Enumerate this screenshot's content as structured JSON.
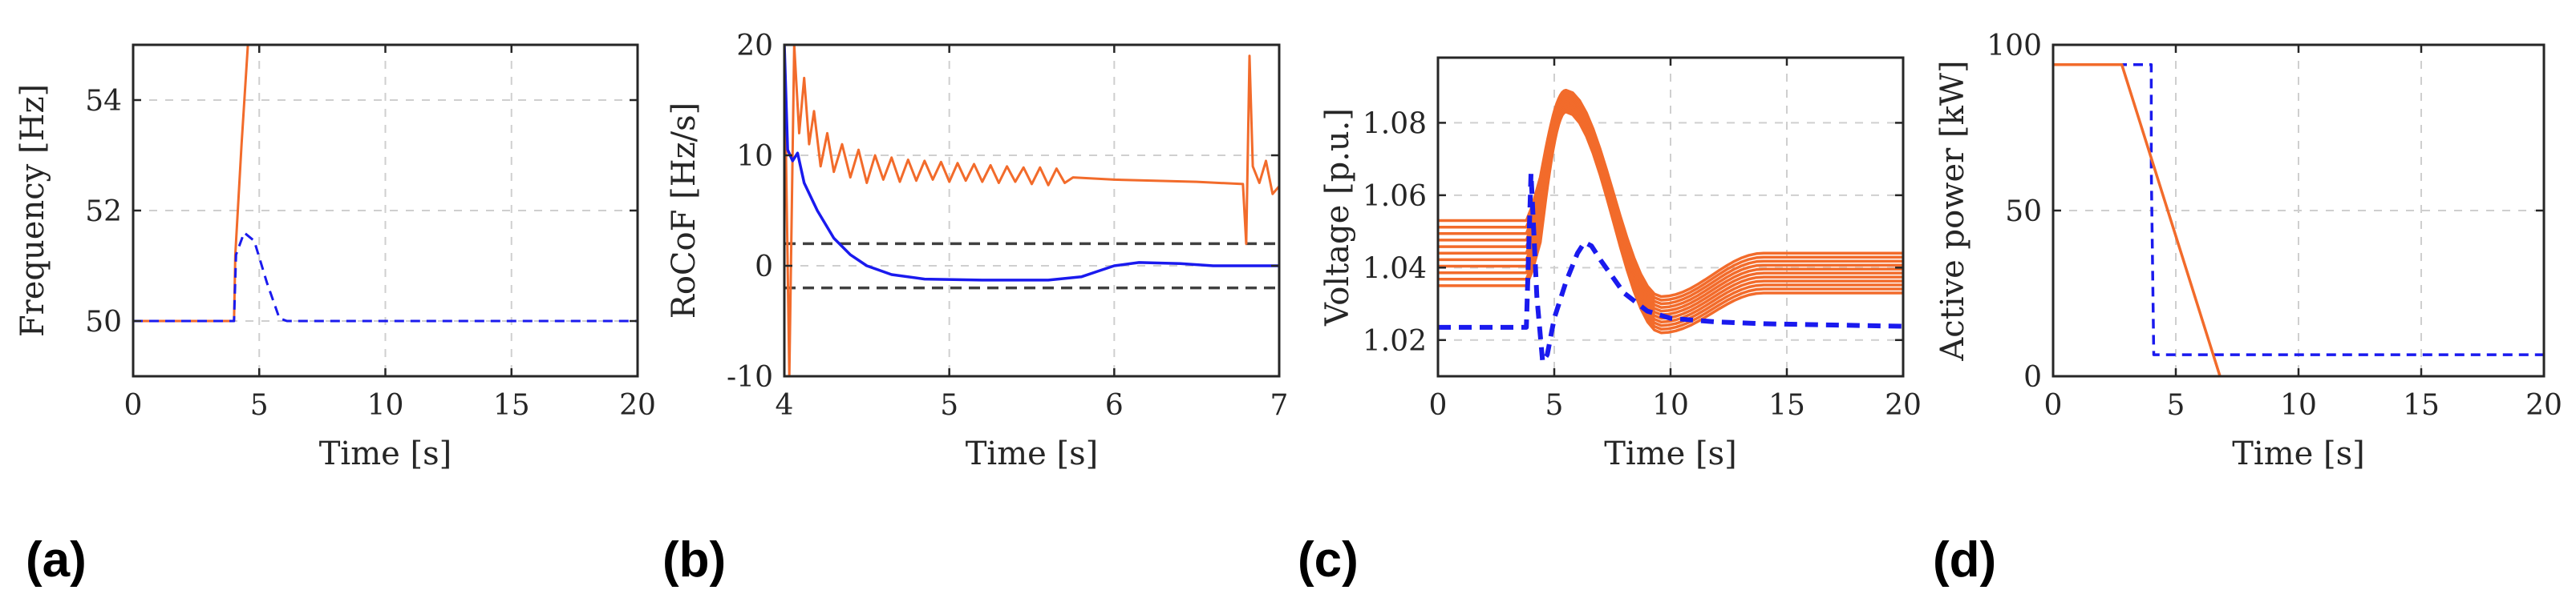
{
  "figure": {
    "panel_labels": [
      "(a)",
      "(b)",
      "(c)",
      "(d)"
    ]
  },
  "colors": {
    "orange": "#f26b2b",
    "blue": "#1a1aee",
    "grid": "#cfcfcf",
    "reference": "#404040"
  },
  "chart_data": [
    {
      "id": "a",
      "type": "line",
      "xlabel": "Time [s]",
      "ylabel": "Frequency [Hz]",
      "xlim": [
        0,
        20
      ],
      "ylim": [
        49,
        55
      ],
      "xticks": [
        0,
        5,
        10,
        15,
        20
      ],
      "yticks": [
        50,
        52,
        54
      ],
      "series": [
        {
          "name": "orange",
          "color": "orange",
          "dash": "solid",
          "width": 3,
          "points": [
            [
              0,
              50
            ],
            [
              4,
              50
            ],
            [
              4.05,
              51.2
            ],
            [
              4.3,
              53.2
            ],
            [
              4.55,
              55
            ]
          ]
        },
        {
          "name": "blue",
          "color": "blue",
          "dash": "dashed",
          "width": 3,
          "points": [
            [
              0,
              50
            ],
            [
              4,
              50
            ],
            [
              4.08,
              51.2
            ],
            [
              4.4,
              51.6
            ],
            [
              4.8,
              51.45
            ],
            [
              5.3,
              50.7
            ],
            [
              5.8,
              50.05
            ],
            [
              6.1,
              50
            ],
            [
              20,
              50
            ]
          ]
        }
      ]
    },
    {
      "id": "b",
      "type": "line",
      "xlabel": "Time [s]",
      "ylabel": "RoCoF [Hz/s]",
      "xlim": [
        4,
        7
      ],
      "ylim": [
        -10,
        20
      ],
      "xticks": [
        4,
        5,
        6,
        7
      ],
      "yticks": [
        -10,
        0,
        10,
        20
      ],
      "reference_lines": [
        2,
        -2
      ],
      "series": [
        {
          "name": "orange",
          "color": "orange",
          "dash": "solid",
          "width": 3,
          "points": [
            [
              4,
              20
            ],
            [
              4.03,
              -10
            ],
            [
              4.06,
              20
            ],
            [
              4.09,
              12
            ],
            [
              4.12,
              17
            ],
            [
              4.15,
              11
            ],
            [
              4.18,
              14
            ],
            [
              4.22,
              9
            ],
            [
              4.26,
              12
            ],
            [
              4.3,
              8.5
            ],
            [
              4.35,
              11
            ],
            [
              4.4,
              8
            ],
            [
              4.45,
              10.5
            ],
            [
              4.5,
              7.5
            ],
            [
              4.55,
              10
            ],
            [
              4.6,
              7.8
            ],
            [
              4.65,
              9.8
            ],
            [
              4.7,
              7.6
            ],
            [
              4.75,
              9.6
            ],
            [
              4.8,
              7.7
            ],
            [
              4.85,
              9.5
            ],
            [
              4.9,
              7.8
            ],
            [
              4.95,
              9.4
            ],
            [
              5.0,
              7.6
            ],
            [
              5.05,
              9.3
            ],
            [
              5.1,
              7.7
            ],
            [
              5.15,
              9.2
            ],
            [
              5.2,
              7.6
            ],
            [
              5.25,
              9.1
            ],
            [
              5.3,
              7.5
            ],
            [
              5.35,
              9.0
            ],
            [
              5.4,
              7.6
            ],
            [
              5.45,
              8.9
            ],
            [
              5.5,
              7.4
            ],
            [
              5.55,
              8.9
            ],
            [
              5.6,
              7.3
            ],
            [
              5.65,
              8.8
            ],
            [
              5.7,
              7.5
            ],
            [
              5.75,
              8.0
            ],
            [
              6.0,
              7.8
            ],
            [
              6.5,
              7.6
            ],
            [
              6.78,
              7.4
            ],
            [
              6.8,
              2
            ],
            [
              6.82,
              19
            ],
            [
              6.84,
              9
            ],
            [
              6.88,
              7.5
            ],
            [
              6.92,
              9.5
            ],
            [
              6.96,
              6.5
            ],
            [
              7.0,
              7.2
            ]
          ]
        },
        {
          "name": "blue",
          "color": "blue",
          "dash": "solid",
          "width": 3.5,
          "points": [
            [
              4,
              20
            ],
            [
              4.02,
              10.5
            ],
            [
              4.05,
              9.5
            ],
            [
              4.08,
              10.2
            ],
            [
              4.12,
              7.5
            ],
            [
              4.2,
              5
            ],
            [
              4.3,
              2.5
            ],
            [
              4.4,
              1
            ],
            [
              4.5,
              0
            ],
            [
              4.65,
              -0.8
            ],
            [
              4.85,
              -1.2
            ],
            [
              5.2,
              -1.3
            ],
            [
              5.6,
              -1.3
            ],
            [
              5.8,
              -1.0
            ],
            [
              5.9,
              -0.5
            ],
            [
              6.0,
              0
            ],
            [
              6.15,
              0.3
            ],
            [
              6.4,
              0.2
            ],
            [
              6.6,
              0
            ],
            [
              7.0,
              0
            ]
          ]
        }
      ]
    },
    {
      "id": "c",
      "type": "line",
      "xlabel": "Time [s]",
      "ylabel": "Voltage [p.u.]",
      "xlim": [
        0,
        20
      ],
      "ylim": [
        1.01,
        1.098
      ],
      "xticks": [
        0,
        5,
        10,
        15,
        20
      ],
      "yticks": [
        1.02,
        1.04,
        1.06,
        1.08
      ],
      "orange_band": {
        "count": 11,
        "initial_range": [
          1.035,
          1.053
        ],
        "peak_time": 5.5,
        "peak_range": [
          1.083,
          1.089
        ],
        "trough_time": 9.6,
        "trough_range": [
          1.022,
          1.032
        ],
        "final_range": [
          1.033,
          1.044
        ]
      },
      "series": [
        {
          "name": "blue",
          "color": "blue",
          "dash": "dashed",
          "width": 6,
          "points": [
            [
              0,
              1.0235
            ],
            [
              3.8,
              1.0235
            ],
            [
              4.0,
              1.066
            ],
            [
              4.25,
              1.032
            ],
            [
              4.5,
              1.014
            ],
            [
              4.7,
              1.016
            ],
            [
              5.0,
              1.026
            ],
            [
              5.5,
              1.036
            ],
            [
              6.0,
              1.044
            ],
            [
              6.3,
              1.047
            ],
            [
              6.6,
              1.046
            ],
            [
              7.0,
              1.042
            ],
            [
              8.0,
              1.033
            ],
            [
              9.0,
              1.028
            ],
            [
              10.0,
              1.026
            ],
            [
              12.0,
              1.025
            ],
            [
              14.0,
              1.0245
            ],
            [
              20.0,
              1.0238
            ]
          ]
        }
      ]
    },
    {
      "id": "d",
      "type": "line",
      "xlabel": "Time [s]",
      "ylabel": "Active power [kW]",
      "xlim": [
        0,
        20
      ],
      "ylim": [
        0,
        100
      ],
      "xticks": [
        0,
        5,
        10,
        15,
        20
      ],
      "yticks": [
        0,
        50,
        100
      ],
      "series": [
        {
          "name": "blue",
          "color": "blue",
          "dash": "dashed",
          "width": 3.5,
          "points": [
            [
              0,
              94
            ],
            [
              4,
              94
            ],
            [
              4,
              63
            ],
            [
              4.1,
              6.5
            ],
            [
              20,
              6.5
            ]
          ]
        },
        {
          "name": "orange",
          "color": "orange",
          "dash": "solid",
          "width": 3.5,
          "points": [
            [
              0,
              94
            ],
            [
              2.8,
              94
            ],
            [
              6.8,
              0
            ]
          ]
        }
      ]
    }
  ]
}
